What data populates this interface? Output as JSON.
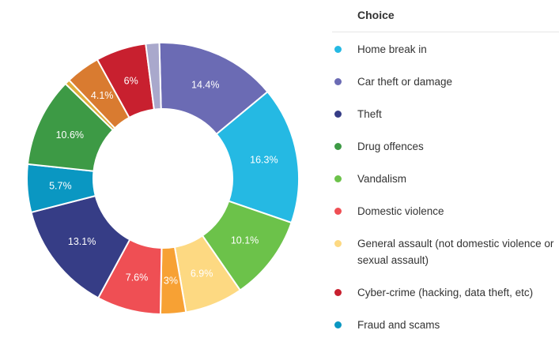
{
  "chart_data": {
    "type": "pie",
    "variant": "donut",
    "legend_title": "Choice",
    "legend_position": "right",
    "slices": [
      {
        "label": "Car theft or damage",
        "value": 14.4,
        "display": "14.4%",
        "color": "#6b6bb4"
      },
      {
        "label": "Home break in",
        "value": 16.3,
        "display": "16.3%",
        "color": "#25b9e3"
      },
      {
        "label": "Vandalism",
        "value": 10.1,
        "display": "10.1%",
        "color": "#6cc24a"
      },
      {
        "label": "General assault (not domestic violence or sexual assault)",
        "value": 6.9,
        "display": "6.9%",
        "color": "#fdd982"
      },
      {
        "label": "",
        "value": 3.0,
        "display": "3%",
        "color": "#f7a134"
      },
      {
        "label": "Domestic violence",
        "value": 7.6,
        "display": "7.6%",
        "color": "#ef4f54"
      },
      {
        "label": "Theft",
        "value": 13.1,
        "display": "13.1%",
        "color": "#363d86"
      },
      {
        "label": "Fraud and scams",
        "value": 5.7,
        "display": "5.7%",
        "color": "#0a97c2"
      },
      {
        "label": "Drug offences",
        "value": 10.6,
        "display": "10.6%",
        "color": "#3d9a45"
      },
      {
        "label": "",
        "value": 0.6,
        "display": "",
        "color": "#dfac3a"
      },
      {
        "label": "",
        "value": 4.1,
        "display": "4.1%",
        "color": "#d97b30"
      },
      {
        "label": "Cyber-crime (hacking, data theft, etc)",
        "value": 6.0,
        "display": "6%",
        "color": "#c8202f"
      },
      {
        "label": "",
        "value": 1.6,
        "display": "",
        "color": "#a9a8cc"
      }
    ],
    "legend": [
      {
        "label": "Home break in",
        "color": "#25b9e3"
      },
      {
        "label": "Car theft or damage",
        "color": "#6b6bb4"
      },
      {
        "label": "Theft",
        "color": "#363d86"
      },
      {
        "label": "Drug offences",
        "color": "#3d9a45"
      },
      {
        "label": "Vandalism",
        "color": "#6cc24a"
      },
      {
        "label": "Domestic violence",
        "color": "#ef4f54"
      },
      {
        "label": "General assault (not domestic violence or sexual assault)",
        "color": "#fdd982"
      },
      {
        "label": "Cyber-crime (hacking, data theft, etc)",
        "color": "#c8202f"
      },
      {
        "label": "Fraud and scams",
        "color": "#0a97c2"
      }
    ]
  }
}
